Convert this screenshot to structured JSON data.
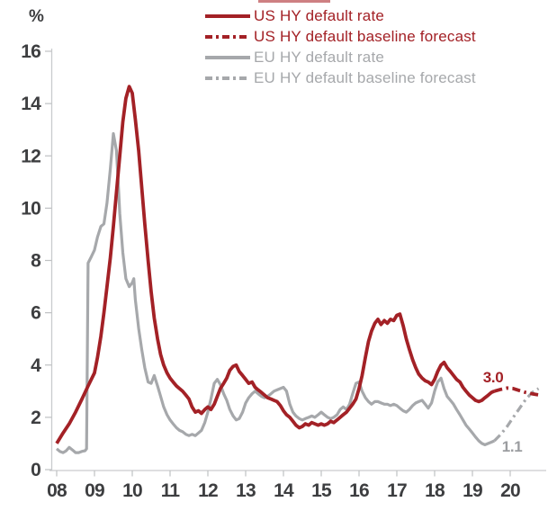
{
  "chart_data": {
    "type": "line",
    "title": "",
    "xlabel": "",
    "ylabel": "%",
    "ylim": [
      0,
      16
    ],
    "xlim": [
      2008,
      2020.83
    ],
    "grid": false,
    "legend_position": "top-center",
    "y_ticks": [
      0,
      2,
      4,
      6,
      8,
      10,
      12,
      14,
      16
    ],
    "x_ticks": [
      "08",
      "09",
      "10",
      "11",
      "12",
      "13",
      "14",
      "15",
      "16",
      "17",
      "18",
      "19",
      "20"
    ],
    "colors": {
      "us": "#a32126",
      "eu": "#a6a8ab",
      "axis_text": "#3d3e40",
      "axis_line": "#c9cbcd"
    },
    "series": [
      {
        "name": "US HY default rate",
        "color": "#a32126",
        "style": "solid",
        "points": [
          [
            2008.0,
            1.0
          ],
          [
            2008.17,
            1.4
          ],
          [
            2008.33,
            1.75
          ],
          [
            2008.5,
            2.2
          ],
          [
            2008.67,
            2.7
          ],
          [
            2008.83,
            3.2
          ],
          [
            2009.0,
            3.7
          ],
          [
            2009.08,
            4.3
          ],
          [
            2009.17,
            5.1
          ],
          [
            2009.25,
            6.0
          ],
          [
            2009.33,
            7.0
          ],
          [
            2009.42,
            8.1
          ],
          [
            2009.5,
            9.3
          ],
          [
            2009.58,
            10.6
          ],
          [
            2009.67,
            12.0
          ],
          [
            2009.75,
            13.3
          ],
          [
            2009.83,
            14.2
          ],
          [
            2009.92,
            14.65
          ],
          [
            2010.0,
            14.4
          ],
          [
            2010.08,
            13.4
          ],
          [
            2010.17,
            12.2
          ],
          [
            2010.25,
            10.8
          ],
          [
            2010.33,
            9.4
          ],
          [
            2010.42,
            8.0
          ],
          [
            2010.5,
            6.8
          ],
          [
            2010.58,
            5.8
          ],
          [
            2010.67,
            5.0
          ],
          [
            2010.75,
            4.4
          ],
          [
            2010.83,
            4.0
          ],
          [
            2010.92,
            3.7
          ],
          [
            2011.0,
            3.5
          ],
          [
            2011.08,
            3.35
          ],
          [
            2011.17,
            3.2
          ],
          [
            2011.25,
            3.1
          ],
          [
            2011.33,
            3.0
          ],
          [
            2011.42,
            2.85
          ],
          [
            2011.5,
            2.7
          ],
          [
            2011.58,
            2.4
          ],
          [
            2011.67,
            2.2
          ],
          [
            2011.75,
            2.25
          ],
          [
            2011.83,
            2.15
          ],
          [
            2011.92,
            2.3
          ],
          [
            2012.0,
            2.4
          ],
          [
            2012.08,
            2.3
          ],
          [
            2012.17,
            2.5
          ],
          [
            2012.25,
            2.8
          ],
          [
            2012.33,
            3.1
          ],
          [
            2012.42,
            3.3
          ],
          [
            2012.5,
            3.5
          ],
          [
            2012.58,
            3.8
          ],
          [
            2012.67,
            3.95
          ],
          [
            2012.75,
            4.0
          ],
          [
            2012.83,
            3.75
          ],
          [
            2012.92,
            3.6
          ],
          [
            2013.0,
            3.45
          ],
          [
            2013.08,
            3.3
          ],
          [
            2013.17,
            3.35
          ],
          [
            2013.25,
            3.15
          ],
          [
            2013.33,
            3.05
          ],
          [
            2013.42,
            2.95
          ],
          [
            2013.5,
            2.85
          ],
          [
            2013.58,
            2.75
          ],
          [
            2013.67,
            2.7
          ],
          [
            2013.75,
            2.65
          ],
          [
            2013.83,
            2.6
          ],
          [
            2013.92,
            2.45
          ],
          [
            2014.0,
            2.25
          ],
          [
            2014.08,
            2.1
          ],
          [
            2014.17,
            2.0
          ],
          [
            2014.25,
            1.85
          ],
          [
            2014.33,
            1.7
          ],
          [
            2014.42,
            1.6
          ],
          [
            2014.5,
            1.65
          ],
          [
            2014.58,
            1.75
          ],
          [
            2014.67,
            1.7
          ],
          [
            2014.75,
            1.8
          ],
          [
            2014.83,
            1.75
          ],
          [
            2014.92,
            1.7
          ],
          [
            2015.0,
            1.75
          ],
          [
            2015.08,
            1.7
          ],
          [
            2015.17,
            1.75
          ],
          [
            2015.25,
            1.85
          ],
          [
            2015.33,
            1.8
          ],
          [
            2015.42,
            1.9
          ],
          [
            2015.5,
            2.0
          ],
          [
            2015.58,
            2.1
          ],
          [
            2015.67,
            2.2
          ],
          [
            2015.75,
            2.35
          ],
          [
            2015.83,
            2.5
          ],
          [
            2015.92,
            2.7
          ],
          [
            2016.0,
            3.1
          ],
          [
            2016.08,
            3.6
          ],
          [
            2016.17,
            4.3
          ],
          [
            2016.25,
            4.9
          ],
          [
            2016.33,
            5.3
          ],
          [
            2016.42,
            5.6
          ],
          [
            2016.5,
            5.75
          ],
          [
            2016.58,
            5.55
          ],
          [
            2016.67,
            5.7
          ],
          [
            2016.75,
            5.6
          ],
          [
            2016.83,
            5.75
          ],
          [
            2016.92,
            5.7
          ],
          [
            2017.0,
            5.9
          ],
          [
            2017.08,
            5.95
          ],
          [
            2017.17,
            5.5
          ],
          [
            2017.25,
            5.0
          ],
          [
            2017.33,
            4.6
          ],
          [
            2017.42,
            4.2
          ],
          [
            2017.5,
            3.9
          ],
          [
            2017.58,
            3.65
          ],
          [
            2017.67,
            3.5
          ],
          [
            2017.75,
            3.4
          ],
          [
            2017.83,
            3.35
          ],
          [
            2017.92,
            3.25
          ],
          [
            2018.0,
            3.45
          ],
          [
            2018.08,
            3.75
          ],
          [
            2018.17,
            4.0
          ],
          [
            2018.25,
            4.1
          ],
          [
            2018.33,
            3.9
          ],
          [
            2018.42,
            3.75
          ],
          [
            2018.5,
            3.6
          ],
          [
            2018.58,
            3.45
          ],
          [
            2018.67,
            3.35
          ],
          [
            2018.75,
            3.15
          ],
          [
            2018.83,
            3.0
          ],
          [
            2018.92,
            2.85
          ],
          [
            2019.0,
            2.75
          ],
          [
            2019.08,
            2.65
          ],
          [
            2019.17,
            2.6
          ],
          [
            2019.25,
            2.65
          ],
          [
            2019.33,
            2.75
          ],
          [
            2019.42,
            2.85
          ],
          [
            2019.5,
            2.95
          ],
          [
            2019.58,
            3.0
          ]
        ]
      },
      {
        "name": "US HY default baseline forecast",
        "color": "#a32126",
        "style": "dashed",
        "points": [
          [
            2019.58,
            3.0
          ],
          [
            2019.75,
            3.07
          ],
          [
            2019.92,
            3.12
          ],
          [
            2020.08,
            3.1
          ],
          [
            2020.25,
            3.02
          ],
          [
            2020.42,
            2.95
          ],
          [
            2020.58,
            2.9
          ],
          [
            2020.75,
            2.86
          ]
        ]
      },
      {
        "name": "EU HY default rate",
        "color": "#a6a8ab",
        "style": "solid",
        "points": [
          [
            2008.0,
            0.8
          ],
          [
            2008.08,
            0.7
          ],
          [
            2008.17,
            0.65
          ],
          [
            2008.25,
            0.72
          ],
          [
            2008.33,
            0.85
          ],
          [
            2008.42,
            0.75
          ],
          [
            2008.5,
            0.65
          ],
          [
            2008.58,
            0.65
          ],
          [
            2008.67,
            0.7
          ],
          [
            2008.75,
            0.72
          ],
          [
            2008.79,
            0.8
          ],
          [
            2008.83,
            7.9
          ],
          [
            2008.92,
            8.15
          ],
          [
            2009.0,
            8.4
          ],
          [
            2009.08,
            8.9
          ],
          [
            2009.17,
            9.3
          ],
          [
            2009.25,
            9.4
          ],
          [
            2009.33,
            10.2
          ],
          [
            2009.42,
            11.5
          ],
          [
            2009.5,
            12.85
          ],
          [
            2009.58,
            12.2
          ],
          [
            2009.63,
            10.9
          ],
          [
            2009.67,
            9.8
          ],
          [
            2009.75,
            8.3
          ],
          [
            2009.83,
            7.3
          ],
          [
            2009.92,
            7.0
          ],
          [
            2010.0,
            7.15
          ],
          [
            2010.04,
            7.3
          ],
          [
            2010.08,
            6.5
          ],
          [
            2010.17,
            5.4
          ],
          [
            2010.25,
            4.6
          ],
          [
            2010.33,
            3.9
          ],
          [
            2010.42,
            3.35
          ],
          [
            2010.5,
            3.3
          ],
          [
            2010.58,
            3.6
          ],
          [
            2010.67,
            3.2
          ],
          [
            2010.75,
            2.8
          ],
          [
            2010.83,
            2.4
          ],
          [
            2010.92,
            2.1
          ],
          [
            2011.0,
            1.9
          ],
          [
            2011.08,
            1.75
          ],
          [
            2011.17,
            1.6
          ],
          [
            2011.25,
            1.5
          ],
          [
            2011.33,
            1.45
          ],
          [
            2011.42,
            1.35
          ],
          [
            2011.5,
            1.3
          ],
          [
            2011.58,
            1.35
          ],
          [
            2011.67,
            1.3
          ],
          [
            2011.75,
            1.4
          ],
          [
            2011.83,
            1.5
          ],
          [
            2011.92,
            1.8
          ],
          [
            2012.0,
            2.2
          ],
          [
            2012.08,
            2.7
          ],
          [
            2012.17,
            3.3
          ],
          [
            2012.25,
            3.45
          ],
          [
            2012.33,
            3.25
          ],
          [
            2012.42,
            2.9
          ],
          [
            2012.5,
            2.65
          ],
          [
            2012.58,
            2.3
          ],
          [
            2012.67,
            2.05
          ],
          [
            2012.75,
            1.9
          ],
          [
            2012.83,
            1.95
          ],
          [
            2012.92,
            2.2
          ],
          [
            2013.0,
            2.55
          ],
          [
            2013.08,
            2.75
          ],
          [
            2013.17,
            2.9
          ],
          [
            2013.25,
            3.0
          ],
          [
            2013.33,
            2.9
          ],
          [
            2013.42,
            2.8
          ],
          [
            2013.5,
            2.75
          ],
          [
            2013.58,
            2.8
          ],
          [
            2013.67,
            2.9
          ],
          [
            2013.75,
            3.0
          ],
          [
            2013.83,
            3.05
          ],
          [
            2013.92,
            3.1
          ],
          [
            2014.0,
            3.15
          ],
          [
            2014.08,
            3.0
          ],
          [
            2014.17,
            2.5
          ],
          [
            2014.25,
            2.2
          ],
          [
            2014.33,
            2.05
          ],
          [
            2014.42,
            1.95
          ],
          [
            2014.5,
            1.9
          ],
          [
            2014.58,
            1.95
          ],
          [
            2014.67,
            2.0
          ],
          [
            2014.75,
            2.05
          ],
          [
            2014.83,
            2.0
          ],
          [
            2014.92,
            2.1
          ],
          [
            2015.0,
            2.2
          ],
          [
            2015.08,
            2.1
          ],
          [
            2015.17,
            2.0
          ],
          [
            2015.25,
            1.95
          ],
          [
            2015.33,
            2.0
          ],
          [
            2015.42,
            2.1
          ],
          [
            2015.5,
            2.3
          ],
          [
            2015.58,
            2.4
          ],
          [
            2015.67,
            2.3
          ],
          [
            2015.75,
            2.5
          ],
          [
            2015.83,
            2.9
          ],
          [
            2015.92,
            3.3
          ],
          [
            2016.0,
            3.35
          ],
          [
            2016.08,
            3.0
          ],
          [
            2016.17,
            2.75
          ],
          [
            2016.25,
            2.6
          ],
          [
            2016.33,
            2.5
          ],
          [
            2016.42,
            2.6
          ],
          [
            2016.5,
            2.6
          ],
          [
            2016.58,
            2.55
          ],
          [
            2016.67,
            2.5
          ],
          [
            2016.75,
            2.5
          ],
          [
            2016.83,
            2.45
          ],
          [
            2016.92,
            2.5
          ],
          [
            2017.0,
            2.45
          ],
          [
            2017.08,
            2.35
          ],
          [
            2017.17,
            2.25
          ],
          [
            2017.25,
            2.2
          ],
          [
            2017.33,
            2.3
          ],
          [
            2017.42,
            2.45
          ],
          [
            2017.5,
            2.55
          ],
          [
            2017.58,
            2.6
          ],
          [
            2017.67,
            2.65
          ],
          [
            2017.75,
            2.5
          ],
          [
            2017.83,
            2.35
          ],
          [
            2017.92,
            2.55
          ],
          [
            2018.0,
            3.0
          ],
          [
            2018.08,
            3.35
          ],
          [
            2018.17,
            3.5
          ],
          [
            2018.25,
            3.1
          ],
          [
            2018.33,
            2.8
          ],
          [
            2018.42,
            2.65
          ],
          [
            2018.5,
            2.5
          ],
          [
            2018.58,
            2.3
          ],
          [
            2018.67,
            2.1
          ],
          [
            2018.75,
            1.9
          ],
          [
            2018.83,
            1.7
          ],
          [
            2018.92,
            1.55
          ],
          [
            2019.0,
            1.4
          ],
          [
            2019.08,
            1.25
          ],
          [
            2019.17,
            1.1
          ],
          [
            2019.25,
            1.0
          ],
          [
            2019.33,
            0.95
          ],
          [
            2019.42,
            1.0
          ],
          [
            2019.5,
            1.05
          ],
          [
            2019.58,
            1.1
          ]
        ]
      },
      {
        "name": "EU HY default baseline forecast",
        "color": "#a6a8ab",
        "style": "dashed",
        "points": [
          [
            2019.58,
            1.1
          ],
          [
            2019.75,
            1.35
          ],
          [
            2019.92,
            1.65
          ],
          [
            2020.08,
            2.0
          ],
          [
            2020.25,
            2.35
          ],
          [
            2020.42,
            2.7
          ],
          [
            2020.58,
            2.95
          ],
          [
            2020.75,
            3.1
          ]
        ]
      }
    ],
    "annotations": [
      {
        "text": "3.0",
        "color": "#a32126",
        "x": 2019.55,
        "y": 3.5
      },
      {
        "text": "1.1",
        "color": "#9b9da0",
        "x": 2020.05,
        "y": 0.85
      }
    ]
  }
}
